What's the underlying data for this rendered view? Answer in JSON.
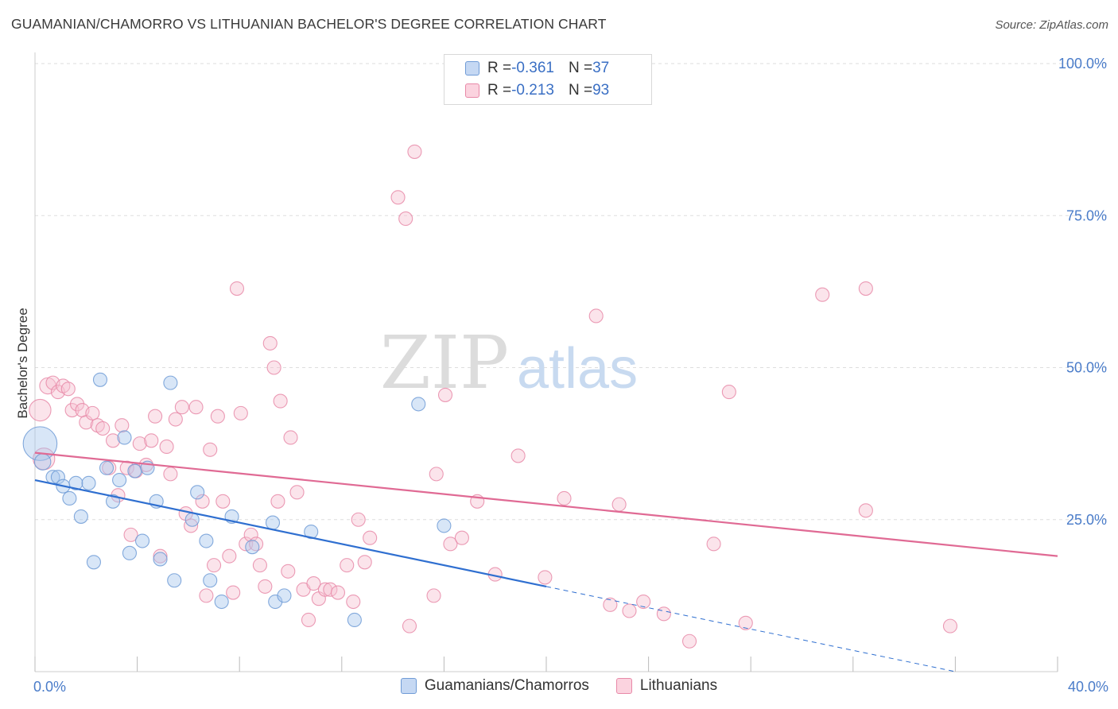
{
  "header": {
    "title": "GUAMANIAN/CHAMORRO VS LITHUANIAN BACHELOR'S DEGREE CORRELATION CHART",
    "source": "Source: ZipAtlas.com"
  },
  "watermark": {
    "zip": "ZIP",
    "atlas": "atlas"
  },
  "legend": {
    "rows": [
      {
        "r_label": "R = ",
        "r_value": "-0.361",
        "n_label": "N = ",
        "n_value": "37",
        "color": "#a9c7ee",
        "border": "#6f9bd6"
      },
      {
        "r_label": "R = ",
        "r_value": "-0.213",
        "n_label": "N = ",
        "n_value": "93",
        "color": "#f7c3d3",
        "border": "#e889a8"
      }
    ]
  },
  "bottom_legend": {
    "items": [
      {
        "label": "Guamanians/Chamorros",
        "color": "#c5d8f3",
        "border": "#6f9bd6"
      },
      {
        "label": "Lithuanians",
        "color": "#fbd3df",
        "border": "#e889a8"
      }
    ]
  },
  "chart_data": {
    "type": "scatter",
    "title": "GUAMANIAN/CHAMORRO VS LITHUANIAN BACHELOR'S DEGREE CORRELATION CHART",
    "xlabel": "",
    "ylabel": "Bachelor's Degree",
    "xlim": [
      0,
      40
    ],
    "ylim": [
      0,
      100
    ],
    "x_tick_labels": [
      "0.0%",
      "40.0%"
    ],
    "y_ticks": [
      25,
      50,
      75,
      100
    ],
    "y_tick_labels": [
      "25.0%",
      "50.0%",
      "75.0%",
      "100.0%"
    ],
    "grid": true,
    "legend_position": "top-center",
    "colors": {
      "blue_fill": "#a9c7ee",
      "blue_stroke": "#6f9bd6",
      "blue_line": "#2f6fd0",
      "pink_fill": "#f7c3d3",
      "pink_stroke": "#e889a8",
      "pink_line": "#e06a94"
    },
    "series": [
      {
        "name": "Guamanians/Chamorros",
        "color": "#a9c7ee",
        "trend": {
          "x0": 0,
          "y0": 31.5,
          "x1": 20,
          "y1": 14.0,
          "dash_to_x": 36,
          "dash_to_y": 0
        },
        "points": [
          [
            0.2,
            37.5,
            2.5
          ],
          [
            0.3,
            34.5,
            1.2
          ],
          [
            0.7,
            32.0,
            1
          ],
          [
            0.9,
            32.0,
            1
          ],
          [
            1.1,
            30.5,
            1
          ],
          [
            1.35,
            28.5,
            1
          ],
          [
            1.6,
            31.0,
            1
          ],
          [
            1.8,
            25.5,
            1
          ],
          [
            2.1,
            31.0,
            1
          ],
          [
            2.3,
            18.0,
            1
          ],
          [
            2.55,
            48.0,
            1
          ],
          [
            2.8,
            33.5,
            1
          ],
          [
            3.05,
            28.0,
            1
          ],
          [
            3.3,
            31.5,
            1
          ],
          [
            3.5,
            38.5,
            1
          ],
          [
            3.7,
            19.5,
            1
          ],
          [
            3.9,
            33.0,
            1
          ],
          [
            4.2,
            21.5,
            1
          ],
          [
            4.4,
            33.5,
            1
          ],
          [
            4.75,
            28.0,
            1
          ],
          [
            4.9,
            18.5,
            1
          ],
          [
            5.3,
            47.5,
            1
          ],
          [
            5.45,
            15.0,
            1
          ],
          [
            6.15,
            25.0,
            1
          ],
          [
            6.35,
            29.5,
            1
          ],
          [
            6.7,
            21.5,
            1
          ],
          [
            6.85,
            15.0,
            1
          ],
          [
            7.3,
            11.5,
            1
          ],
          [
            7.7,
            25.5,
            1
          ],
          [
            8.5,
            20.5,
            1
          ],
          [
            9.3,
            24.5,
            1
          ],
          [
            9.4,
            11.5,
            1
          ],
          [
            9.75,
            12.5,
            1
          ],
          [
            10.8,
            23.0,
            1
          ],
          [
            12.5,
            8.5,
            1
          ],
          [
            15.0,
            44.0,
            1
          ],
          [
            16.0,
            24.0,
            1
          ]
        ]
      },
      {
        "name": "Lithuanians",
        "color": "#f7c3d3",
        "trend": {
          "x0": 0,
          "y0": 36.0,
          "x1": 40,
          "y1": 19.0
        },
        "points": [
          [
            0.2,
            43.0,
            1.6
          ],
          [
            0.35,
            35.0,
            1.6
          ],
          [
            0.5,
            47.0,
            1.2
          ],
          [
            0.7,
            47.5,
            1
          ],
          [
            0.9,
            46.0,
            1
          ],
          [
            1.1,
            47.0,
            1
          ],
          [
            1.3,
            46.5,
            1
          ],
          [
            1.45,
            43.0,
            1
          ],
          [
            1.65,
            44.0,
            1
          ],
          [
            1.85,
            43.0,
            1
          ],
          [
            2.0,
            41.0,
            1
          ],
          [
            2.25,
            42.5,
            1
          ],
          [
            2.45,
            40.5,
            1
          ],
          [
            2.65,
            40.0,
            1
          ],
          [
            2.9,
            33.5,
            1
          ],
          [
            3.05,
            38.0,
            1
          ],
          [
            3.25,
            29.0,
            1
          ],
          [
            3.4,
            40.5,
            1
          ],
          [
            3.6,
            33.5,
            1
          ],
          [
            3.75,
            22.5,
            1
          ],
          [
            3.95,
            33.0,
            1
          ],
          [
            4.1,
            37.5,
            1
          ],
          [
            4.35,
            34.0,
            1
          ],
          [
            4.55,
            38.0,
            1
          ],
          [
            4.7,
            42.0,
            1
          ],
          [
            4.9,
            19.0,
            1
          ],
          [
            5.15,
            37.0,
            1
          ],
          [
            5.3,
            32.5,
            1
          ],
          [
            5.5,
            41.5,
            1
          ],
          [
            5.75,
            43.5,
            1
          ],
          [
            5.9,
            26.0,
            1
          ],
          [
            6.1,
            24.0,
            1
          ],
          [
            6.3,
            43.5,
            1
          ],
          [
            6.55,
            28.0,
            1
          ],
          [
            6.7,
            12.5,
            1
          ],
          [
            6.85,
            36.5,
            1
          ],
          [
            7.0,
            17.5,
            1
          ],
          [
            7.15,
            42.0,
            1
          ],
          [
            7.35,
            28.0,
            1
          ],
          [
            7.6,
            19.0,
            1
          ],
          [
            7.75,
            13.0,
            1
          ],
          [
            7.9,
            63.0,
            1
          ],
          [
            8.05,
            42.5,
            1
          ],
          [
            8.25,
            21.0,
            1
          ],
          [
            8.45,
            22.5,
            1
          ],
          [
            8.65,
            21.0,
            1
          ],
          [
            8.8,
            17.5,
            1
          ],
          [
            9.0,
            14.0,
            1
          ],
          [
            9.2,
            54.0,
            1
          ],
          [
            9.35,
            50.0,
            1
          ],
          [
            9.5,
            28.0,
            1
          ],
          [
            9.6,
            44.5,
            1
          ],
          [
            9.9,
            16.5,
            1
          ],
          [
            10.0,
            38.5,
            1
          ],
          [
            10.25,
            29.5,
            1
          ],
          [
            10.5,
            13.5,
            1
          ],
          [
            10.7,
            8.5,
            1
          ],
          [
            10.9,
            14.5,
            1
          ],
          [
            11.1,
            12.0,
            1
          ],
          [
            11.35,
            13.5,
            1
          ],
          [
            11.55,
            13.5,
            1
          ],
          [
            11.85,
            13.0,
            1
          ],
          [
            12.2,
            17.5,
            1
          ],
          [
            12.45,
            11.5,
            1
          ],
          [
            12.65,
            25.0,
            1
          ],
          [
            12.9,
            18.0,
            1
          ],
          [
            13.1,
            22.0,
            1
          ],
          [
            14.2,
            78.0,
            1
          ],
          [
            14.5,
            74.5,
            1
          ],
          [
            14.65,
            7.5,
            1
          ],
          [
            14.85,
            85.5,
            1
          ],
          [
            15.6,
            12.5,
            1
          ],
          [
            15.7,
            32.5,
            1
          ],
          [
            16.05,
            45.5,
            1
          ],
          [
            16.25,
            21.0,
            1
          ],
          [
            16.7,
            22.0,
            1
          ],
          [
            17.3,
            28.0,
            1
          ],
          [
            18.0,
            16.0,
            1
          ],
          [
            18.9,
            35.5,
            1
          ],
          [
            19.95,
            15.5,
            1
          ],
          [
            20.7,
            28.5,
            1
          ],
          [
            21.95,
            58.5,
            1
          ],
          [
            22.5,
            11.0,
            1
          ],
          [
            22.85,
            27.5,
            1
          ],
          [
            23.25,
            10.0,
            1
          ],
          [
            23.8,
            11.5,
            1
          ],
          [
            24.6,
            9.5,
            1
          ],
          [
            25.6,
            5.0,
            1
          ],
          [
            26.55,
            21.0,
            1
          ],
          [
            27.15,
            46.0,
            1
          ],
          [
            27.8,
            8.0,
            1
          ],
          [
            30.8,
            62.0,
            1
          ],
          [
            32.5,
            63.0,
            1
          ],
          [
            32.5,
            26.5,
            1
          ],
          [
            35.8,
            7.5,
            1
          ]
        ]
      }
    ]
  }
}
